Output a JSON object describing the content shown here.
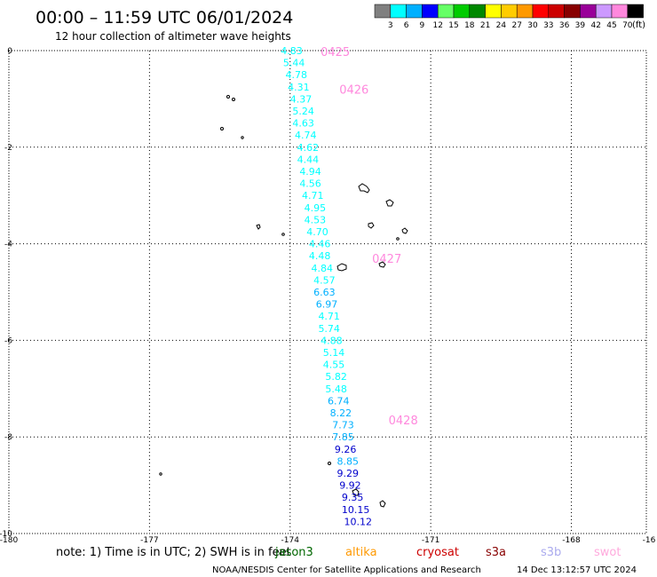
{
  "header": {
    "title": "00:00 – 11:59 UTC 06/01/2024",
    "subtitle": "12 hour collection of altimeter wave heights"
  },
  "legend": {
    "colors": [
      "#808080",
      "#00ffff",
      "#00b0ff",
      "#0000ff",
      "#66ff66",
      "#00cc00",
      "#008800",
      "#ffff00",
      "#ffcc00",
      "#ff9900",
      "#ff0000",
      "#cc0000",
      "#880000",
      "#990099",
      "#cc99ff",
      "#ff88dd",
      "#000000"
    ],
    "labels": [
      "3",
      "6",
      "9",
      "12",
      "15",
      "18",
      "21",
      "24",
      "27",
      "30",
      "33",
      "36",
      "39",
      "42",
      "45",
      "70"
    ],
    "unit": "(ft)"
  },
  "axes": {
    "x_ticks": [
      "-180",
      "-177",
      "-174",
      "-171",
      "-168",
      "-16"
    ],
    "y_ticks": [
      "0",
      "-2",
      "-4",
      "-6",
      "-8",
      "-10"
    ]
  },
  "time_labels": [
    {
      "text": "0425",
      "lat": -0.02,
      "lon": -173.35
    },
    {
      "text": "0426",
      "lat": -0.8,
      "lon": -172.95
    },
    {
      "text": "0427",
      "lat": -4.3,
      "lon": -172.25
    },
    {
      "text": "0428",
      "lat": -7.65,
      "lon": -171.9
    }
  ],
  "swh_readings": [
    {
      "value": "4.83",
      "lat": 0.0,
      "lon": -174.2,
      "color": "#00ffff"
    },
    {
      "value": "5.44",
      "lat": -0.25,
      "lon": -174.15,
      "color": "#00ffff"
    },
    {
      "value": "4.78",
      "lat": -0.5,
      "lon": -174.1,
      "color": "#00ffff"
    },
    {
      "value": "4.31",
      "lat": -0.75,
      "lon": -174.05,
      "color": "#00ffff"
    },
    {
      "value": "4.37",
      "lat": -1.0,
      "lon": -174.0,
      "color": "#00ffff"
    },
    {
      "value": "5.24",
      "lat": -1.25,
      "lon": -173.95,
      "color": "#00ffff"
    },
    {
      "value": "4.63",
      "lat": -1.5,
      "lon": -173.95,
      "color": "#00ffff"
    },
    {
      "value": "4.74",
      "lat": -1.75,
      "lon": -173.9,
      "color": "#00ffff"
    },
    {
      "value": "4.62",
      "lat": -2.0,
      "lon": -173.85,
      "color": "#00ffff"
    },
    {
      "value": "4.44",
      "lat": -2.25,
      "lon": -173.85,
      "color": "#00ffff"
    },
    {
      "value": "4.94",
      "lat": -2.5,
      "lon": -173.8,
      "color": "#00ffff"
    },
    {
      "value": "4.56",
      "lat": -2.75,
      "lon": -173.8,
      "color": "#00ffff"
    },
    {
      "value": "4.71",
      "lat": -3.0,
      "lon": -173.75,
      "color": "#00ffff"
    },
    {
      "value": "4.95",
      "lat": -3.25,
      "lon": -173.7,
      "color": "#00ffff"
    },
    {
      "value": "4.53",
      "lat": -3.5,
      "lon": -173.7,
      "color": "#00ffff"
    },
    {
      "value": "4.70",
      "lat": -3.75,
      "lon": -173.65,
      "color": "#00ffff"
    },
    {
      "value": "4.46",
      "lat": -4.0,
      "lon": -173.6,
      "color": "#00ffff"
    },
    {
      "value": "4.48",
      "lat": -4.25,
      "lon": -173.6,
      "color": "#00ffff"
    },
    {
      "value": "4.84",
      "lat": -4.5,
      "lon": -173.55,
      "color": "#00ffff"
    },
    {
      "value": "4.57",
      "lat": -4.75,
      "lon": -173.5,
      "color": "#00ffff"
    },
    {
      "value": "6.63",
      "lat": -5.0,
      "lon": -173.5,
      "color": "#00b0ff"
    },
    {
      "value": "6.97",
      "lat": -5.25,
      "lon": -173.45,
      "color": "#00b0ff"
    },
    {
      "value": "4.71",
      "lat": -5.5,
      "lon": -173.4,
      "color": "#00ffff"
    },
    {
      "value": "5.74",
      "lat": -5.75,
      "lon": -173.4,
      "color": "#00ffff"
    },
    {
      "value": "4.88",
      "lat": -6.0,
      "lon": -173.35,
      "color": "#00ffff"
    },
    {
      "value": "5.14",
      "lat": -6.25,
      "lon": -173.3,
      "color": "#00ffff"
    },
    {
      "value": "4.55",
      "lat": -6.5,
      "lon": -173.3,
      "color": "#00ffff"
    },
    {
      "value": "5.82",
      "lat": -6.75,
      "lon": -173.25,
      "color": "#00ffff"
    },
    {
      "value": "5.48",
      "lat": -7.0,
      "lon": -173.25,
      "color": "#00ffff"
    },
    {
      "value": "6.74",
      "lat": -7.25,
      "lon": -173.2,
      "color": "#00b0ff"
    },
    {
      "value": "8.22",
      "lat": -7.5,
      "lon": -173.15,
      "color": "#00b0ff"
    },
    {
      "value": "7.73",
      "lat": -7.75,
      "lon": -173.1,
      "color": "#00b0ff"
    },
    {
      "value": "7.85",
      "lat": -8.0,
      "lon": -173.1,
      "color": "#00b0ff"
    },
    {
      "value": "9.26",
      "lat": -8.25,
      "lon": -173.05,
      "color": "#0000cc"
    },
    {
      "value": "8.85",
      "lat": -8.5,
      "lon": -173.0,
      "color": "#00b0ff"
    },
    {
      "value": "9.29",
      "lat": -8.75,
      "lon": -173.0,
      "color": "#0000cc"
    },
    {
      "value": "9.92",
      "lat": -9.0,
      "lon": -172.95,
      "color": "#0000cc"
    },
    {
      "value": "9.35",
      "lat": -9.25,
      "lon": -172.9,
      "color": "#0000cc"
    },
    {
      "value": "10.15",
      "lat": -9.5,
      "lon": -172.9,
      "color": "#0000cc"
    },
    {
      "value": "10.12",
      "lat": -9.75,
      "lon": -172.85,
      "color": "#0000cc"
    }
  ],
  "footer": {
    "note": "note: 1) Time is in UTC; 2) SWH is in feet",
    "satellites": [
      {
        "name": "jason3",
        "color": "#006600"
      },
      {
        "name": "altika",
        "color": "#ff9900"
      },
      {
        "name": "cryosat",
        "color": "#cc0000"
      },
      {
        "name": "s3a",
        "color": "#880000"
      },
      {
        "name": "s3b",
        "color": "#aaaaee"
      },
      {
        "name": "swot",
        "color": "#ffaadd"
      }
    ],
    "credit": "NOAA/NESDIS Center for Satellite Applications and Research",
    "timestamp": "14 Dec 13:12:57 UTC 2024"
  }
}
